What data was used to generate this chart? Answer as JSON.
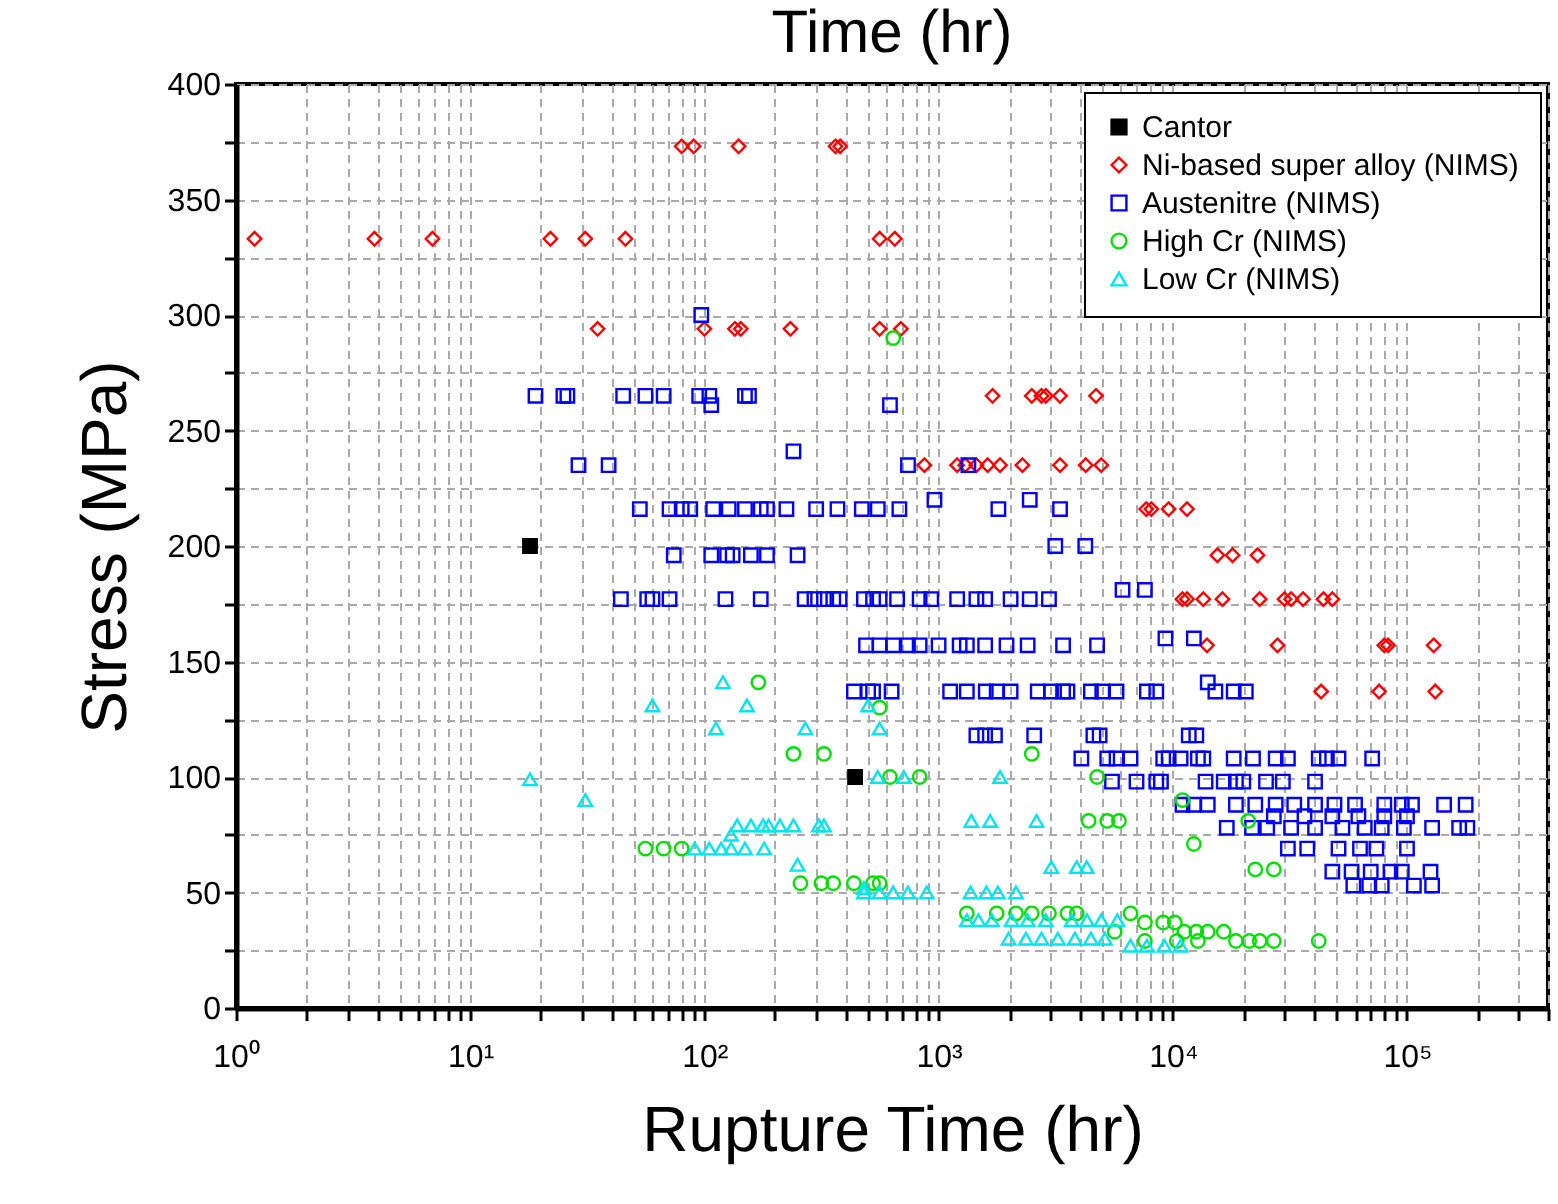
{
  "chart_data": {
    "type": "scatter",
    "title": "Time (hr)",
    "xlabel": "Rupture Time (hr)",
    "ylabel": "Stress (MPa)",
    "log": "x",
    "grid": true,
    "legend": "top right",
    "xlim": [
      1,
      400000
    ],
    "xticks": [
      {
        "value": 1,
        "label": "10⁰"
      },
      {
        "value": 2,
        "label": null
      },
      {
        "value": 3,
        "label": null
      },
      {
        "value": 4,
        "label": null
      },
      {
        "value": 5,
        "label": null
      },
      {
        "value": 6,
        "label": null
      },
      {
        "value": 7,
        "label": null
      },
      {
        "value": 8,
        "label": null
      },
      {
        "value": 9,
        "label": null
      },
      {
        "value": 10,
        "label": "10¹"
      },
      {
        "value": 20,
        "label": null
      },
      {
        "value": 30,
        "label": null
      },
      {
        "value": 40,
        "label": null
      },
      {
        "value": 50,
        "label": null
      },
      {
        "value": 60,
        "label": null
      },
      {
        "value": 70,
        "label": null
      },
      {
        "value": 80,
        "label": null
      },
      {
        "value": 90,
        "label": null
      },
      {
        "value": 100,
        "label": "10²"
      },
      {
        "value": 200,
        "label": null
      },
      {
        "value": 300,
        "label": null
      },
      {
        "value": 400,
        "label": null
      },
      {
        "value": 500,
        "label": null
      },
      {
        "value": 600,
        "label": null
      },
      {
        "value": 700,
        "label": null
      },
      {
        "value": 800,
        "label": null
      },
      {
        "value": 900,
        "label": null
      },
      {
        "value": 1000,
        "label": "10³"
      },
      {
        "value": 2000,
        "label": null
      },
      {
        "value": 3000,
        "label": null
      },
      {
        "value": 4000,
        "label": null
      },
      {
        "value": 5000,
        "label": null
      },
      {
        "value": 6000,
        "label": null
      },
      {
        "value": 7000,
        "label": null
      },
      {
        "value": 8000,
        "label": null
      },
      {
        "value": 9000,
        "label": null
      },
      {
        "value": 10000,
        "label": "10⁴"
      },
      {
        "value": 20000,
        "label": null
      },
      {
        "value": 30000,
        "label": null
      },
      {
        "value": 40000,
        "label": null
      },
      {
        "value": 50000,
        "label": null
      },
      {
        "value": 60000,
        "label": null
      },
      {
        "value": 70000,
        "label": null
      },
      {
        "value": 80000,
        "label": null
      },
      {
        "value": 90000,
        "label": null
      },
      {
        "value": 100000,
        "label": "10⁵"
      },
      {
        "value": 200000,
        "label": null
      },
      {
        "value": 300000,
        "label": null
      },
      {
        "value": 400000,
        "label": null
      }
    ],
    "ylim": [
      0,
      400
    ],
    "yticks": [
      0,
      {
        "value": 25,
        "label": null
      },
      50,
      {
        "value": 75,
        "label": null
      },
      100,
      {
        "value": 125,
        "label": null
      },
      150,
      {
        "value": 175,
        "label": null
      },
      200,
      {
        "value": 225,
        "label": null
      },
      250,
      {
        "value": 275,
        "label": null
      },
      300,
      {
        "value": 325,
        "label": null
      },
      350,
      {
        "value": 375,
        "label": null
      },
      400
    ],
    "series": [
      {
        "name": "Cantor",
        "color": "#000000",
        "marker": "square",
        "x": [
          18,
          440
        ],
        "values": [
          200,
          100
        ]
      },
      {
        "name": "Ni-based super alloy (NIMS)",
        "color": "#ff0000",
        "marker": "diamond",
        "x": [
          80,
          90,
          140,
          363,
          380,
          1.2,
          3.9,
          6.9,
          22,
          31,
          46,
          560,
          650,
          35,
          100,
          135,
          143,
          233,
          560,
          690,
          1700,
          2500,
          2750,
          2870,
          3300,
          4700,
          870,
          1200,
          1300,
          1450,
          1620,
          1830,
          2280,
          3300,
          4250,
          4950,
          7700,
          8100,
          9600,
          11500,
          15500,
          18000,
          23000,
          11000,
          11500,
          13500,
          16300,
          23500,
          30000,
          32000,
          36000,
          44000,
          48000,
          14000,
          28000,
          80000,
          83000,
          130000,
          43000,
          76000,
          132000
        ],
        "values": [
          373,
          373,
          373,
          373,
          373,
          333,
          333,
          333,
          333,
          333,
          333,
          333,
          333,
          294,
          294,
          294,
          294,
          294,
          294,
          294,
          265,
          265,
          265,
          265,
          265,
          265,
          235,
          235,
          235,
          235,
          235,
          235,
          235,
          235,
          235,
          235,
          216,
          216,
          216,
          216,
          196,
          196,
          196,
          177,
          177,
          177,
          177,
          177,
          177,
          177,
          177,
          177,
          177,
          157,
          157,
          157,
          157,
          157,
          137,
          137,
          137
        ]
      },
      {
        "name": "Austenitre (NIMS)",
        "color": "#0000ff",
        "marker": "square",
        "x": [
          97,
          19,
          25,
          26,
          45,
          56,
          67,
          95,
          105,
          149,
          155,
          107,
          620,
          240,
          29,
          39,
          740,
          1340,
          53,
          71,
          80,
          87,
          109,
          127,
          149,
          174,
          185,
          224,
          300,
          370,
          470,
          550,
          680,
          1800,
          3300,
          960,
          2450,
          3150,
          4230,
          74,
          107,
          125,
          132,
          158,
          185,
          250,
          44,
          57,
          60,
          71,
          123,
          174,
          268,
          295,
          324,
          355,
          378,
          480,
          525,
          560,
          665,
          830,
          930,
          1200,
          1450,
          1580,
          2030,
          2450,
          2960,
          6100,
          7600,
          490,
          560,
          640,
          740,
          830,
          1000,
          1230,
          1320,
          1580,
          1950,
          2400,
          3400,
          4750,
          9300,
          12300,
          435,
          500,
          525,
          630,
          1120,
          1320,
          1590,
          1770,
          2030,
          2650,
          3020,
          3400,
          3550,
          4470,
          5000,
          5750,
          7750,
          8500,
          15200,
          18200,
          20500,
          14100,
          1450,
          1580,
          1740,
          2560,
          4580,
          4870,
          11700,
          12600,
          4070,
          5250,
          5750,
          6600,
          9100,
          9600,
          10800,
          12800,
          13500,
          18200,
          22000,
          27500,
          31000,
          42000,
          45500,
          51000,
          71000,
          5500,
          7000,
          8500,
          8900,
          13800,
          16500,
          18600,
          20000,
          25000,
          29500,
          40500,
          11000,
          12300,
          14100,
          18600,
          22500,
          27500,
          33000,
          40500,
          49000,
          60000,
          80000,
          95000,
          105000,
          144000,
          178000,
          27000,
          36500,
          48000,
          62000,
          80000,
          100000,
          17000,
          21800,
          25300,
          32000,
          40500,
          53000,
          66000,
          78000,
          97000,
          128000,
          167000,
          181000,
          31000,
          37500,
          51000,
          63000,
          74000,
          100000,
          48000,
          58000,
          70000,
          85000,
          95000,
          126000,
          59000,
          69000,
          78000,
          107000,
          128000
        ],
        "values": [
          300,
          265,
          265,
          265,
          265,
          265,
          265,
          265,
          265,
          265,
          265,
          261,
          261,
          241,
          235,
          235,
          235,
          235,
          216,
          216,
          216,
          216,
          216,
          216,
          216,
          216,
          216,
          216,
          216,
          216,
          216,
          216,
          216,
          216,
          216,
          220,
          220,
          200,
          200,
          196,
          196,
          196,
          196,
          196,
          196,
          196,
          177,
          177,
          177,
          177,
          177,
          177,
          177,
          177,
          177,
          177,
          177,
          177,
          177,
          177,
          177,
          177,
          177,
          177,
          177,
          177,
          177,
          177,
          177,
          181,
          181,
          157,
          157,
          157,
          157,
          157,
          157,
          157,
          157,
          157,
          157,
          157,
          157,
          157,
          160,
          160,
          137,
          137,
          137,
          137,
          137,
          137,
          137,
          137,
          137,
          137,
          137,
          137,
          137,
          137,
          137,
          137,
          137,
          137,
          137,
          137,
          137,
          141,
          118,
          118,
          118,
          118,
          118,
          118,
          118,
          118,
          108,
          108,
          108,
          108,
          108,
          108,
          108,
          108,
          108,
          108,
          108,
          108,
          108,
          108,
          108,
          108,
          108,
          98,
          98,
          98,
          98,
          98,
          98,
          98,
          98,
          98,
          98,
          98,
          88,
          88,
          88,
          88,
          88,
          88,
          88,
          88,
          88,
          88,
          88,
          88,
          88,
          88,
          88,
          83,
          83,
          83,
          83,
          83,
          83,
          78,
          78,
          78,
          78,
          78,
          78,
          78,
          78,
          78,
          78,
          78,
          78,
          69,
          69,
          69,
          69,
          69,
          69,
          59,
          59,
          59,
          59,
          59,
          59,
          53,
          53,
          53,
          53,
          53
        ]
      },
      {
        "name": "High Cr (NIMS)",
        "color": "#00e000",
        "marker": "circle",
        "x": [
          640,
          170,
          240,
          324,
          56,
          67,
          80,
          257,
          316,
          355,
          435,
          525,
          560,
          620,
          830,
          2500,
          4750,
          11000,
          4370,
          5250,
          5890,
          21000,
          12300,
          22500,
          27000,
          560,
          1320,
          1770,
          2140,
          2500,
          2960,
          3550,
          3890,
          6600,
          7600,
          9100,
          10200,
          5650,
          11200,
          12600,
          14100,
          16500,
          7600,
          10400,
          12800,
          18600,
          21200,
          23500,
          27000,
          42000
        ],
        "values": [
          290,
          141,
          110,
          110,
          69,
          69,
          69,
          54,
          54,
          54,
          54,
          54,
          130,
          100,
          100,
          110,
          100,
          90,
          81,
          81,
          81,
          81,
          71,
          60,
          60,
          54,
          41,
          41,
          41,
          41,
          41,
          41,
          41,
          41,
          37,
          37,
          37,
          33,
          33,
          33,
          33,
          33,
          29,
          29,
          29,
          29,
          29,
          29,
          29,
          29
        ]
      },
      {
        "name": "Low Cr (NIMS)",
        "color": "#00e5ee",
        "marker": "triangle",
        "x": [
          18,
          31,
          60,
          120,
          112,
          152,
          270,
          250,
          500,
          138,
          158,
          178,
          188,
          210,
          240,
          308,
          324,
          130,
          91,
          105,
          118,
          130,
          149,
          180,
          480,
          560,
          550,
          710,
          1830,
          1380,
          1660,
          2620,
          3030,
          3890,
          4290,
          480,
          560,
          640,
          740,
          890,
          1370,
          1600,
          1790,
          2140,
          1320,
          1480,
          1690,
          2050,
          2400,
          2870,
          3700,
          4300,
          4950,
          5800,
          1990,
          2360,
          2750,
          3230,
          3820,
          4470,
          5130,
          6600,
          7750,
          9200,
          10800
        ],
        "values": [
          99,
          90,
          131,
          141,
          121,
          131,
          121,
          62,
          131,
          79,
          79,
          79,
          79,
          79,
          79,
          79,
          79,
          75,
          69,
          69,
          69,
          69,
          69,
          69,
          52,
          121,
          100,
          100,
          100,
          81,
          81,
          81,
          61,
          61,
          61,
          50,
          50,
          50,
          50,
          50,
          50,
          50,
          50,
          50,
          38,
          38,
          38,
          38,
          38,
          38,
          38,
          38,
          38,
          38,
          30,
          30,
          30,
          30,
          30,
          30,
          30,
          27,
          27,
          27,
          27
        ]
      }
    ]
  }
}
